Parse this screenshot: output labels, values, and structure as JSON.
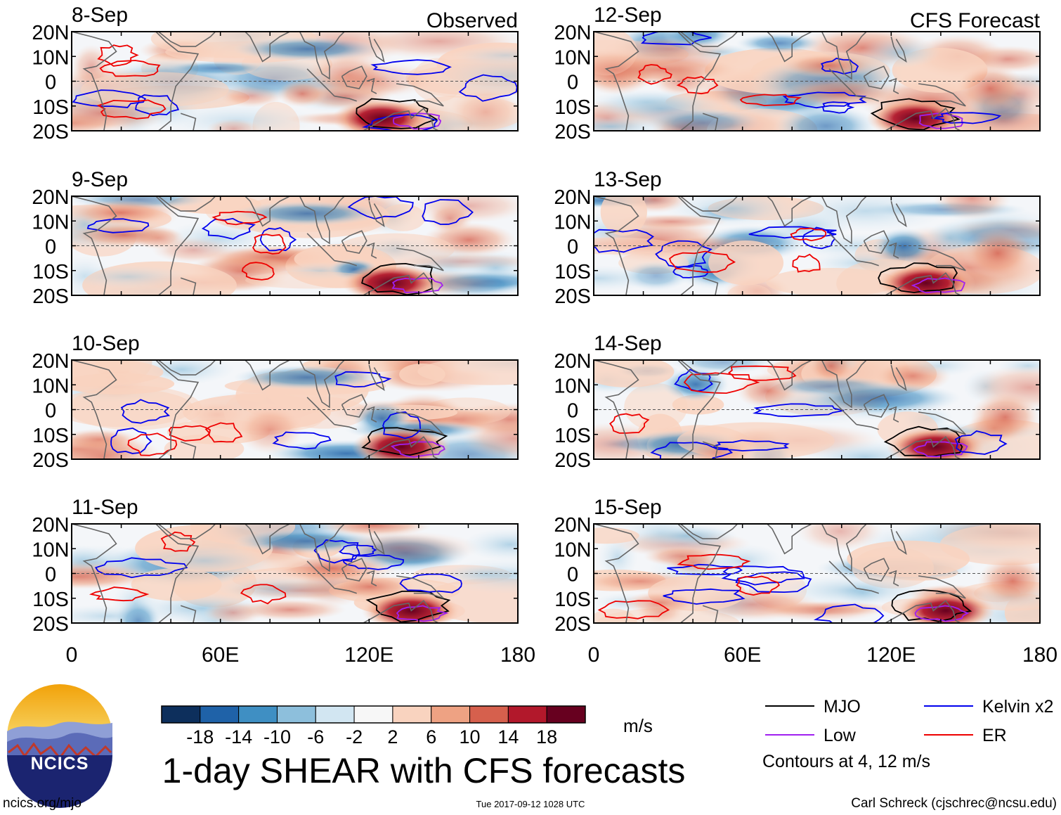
{
  "chart_data": {
    "type": "heatmap",
    "title": "1-day SHEAR with CFS forecasts",
    "units": "m/s",
    "x_axis": {
      "range": [
        0,
        180
      ],
      "tick_labels": [
        "0",
        "60E",
        "120E",
        "180"
      ]
    },
    "y_axis": {
      "range": [
        -20,
        20
      ],
      "tick_labels": [
        "20N",
        "10N",
        "0",
        "10S",
        "20S"
      ]
    },
    "column_titles": [
      "Observed",
      "CFS Forecast"
    ],
    "panels": [
      {
        "date": "8-Sep",
        "column": "Observed"
      },
      {
        "date": "9-Sep",
        "column": "Observed"
      },
      {
        "date": "10-Sep",
        "column": "Observed"
      },
      {
        "date": "11-Sep",
        "column": "Observed"
      },
      {
        "date": "12-Sep",
        "column": "CFS Forecast"
      },
      {
        "date": "13-Sep",
        "column": "CFS Forecast"
      },
      {
        "date": "14-Sep",
        "column": "CFS Forecast"
      },
      {
        "date": "15-Sep",
        "column": "CFS Forecast"
      }
    ],
    "colorbar": {
      "tick_labels": [
        "-18",
        "-14",
        "-10",
        "-6",
        "-2",
        "2",
        "6",
        "10",
        "14",
        "18"
      ],
      "colors": [
        "#0d2f5c",
        "#1f62a8",
        "#3f8fc3",
        "#8dbfdc",
        "#d2e6f2",
        "#f7f7f7",
        "#f9d3bf",
        "#eea283",
        "#d6604d",
        "#b2182b",
        "#67001f"
      ]
    },
    "legend": [
      {
        "label": "MJO",
        "color": "#000000"
      },
      {
        "label": "Kelvin x2",
        "color": "#0000ee"
      },
      {
        "label": "Low",
        "color": "#a020f0"
      },
      {
        "label": "ER",
        "color": "#ee0000"
      }
    ],
    "contour_note": "Contours at 4, 12 m/s"
  },
  "footer": {
    "url": "ncics.org/mjo",
    "timestamp": "Tue 2017-09-12 1028 UTC",
    "credit": "Carl Schreck (cjschrec@ncsu.edu)"
  },
  "logo": {
    "text": "NCICS"
  }
}
